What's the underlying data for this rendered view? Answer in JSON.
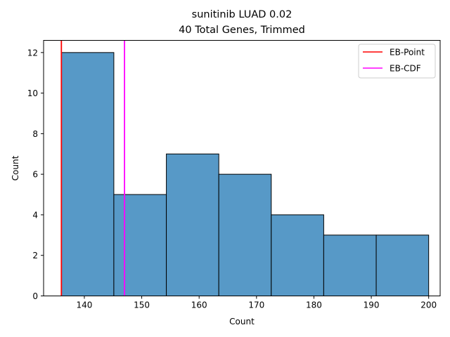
{
  "chart_data": {
    "type": "bar",
    "title": "sunitinib LUAD 0.02",
    "subtitle": "40 Total Genes, Trimmed",
    "xlabel": "Count",
    "ylabel": "Count",
    "xlim": [
      132.9,
      202.0
    ],
    "ylim": [
      0,
      12.6
    ],
    "xticks": [
      140,
      150,
      160,
      170,
      180,
      190,
      200
    ],
    "yticks": [
      0,
      2,
      4,
      6,
      8,
      10,
      12
    ],
    "bins": [
      {
        "start": 136.0,
        "end": 145.14,
        "count": 12
      },
      {
        "start": 145.14,
        "end": 154.29,
        "count": 5
      },
      {
        "start": 154.29,
        "end": 163.43,
        "count": 7
      },
      {
        "start": 163.43,
        "end": 172.57,
        "count": 6
      },
      {
        "start": 172.57,
        "end": 181.71,
        "count": 4
      },
      {
        "start": 181.71,
        "end": 190.86,
        "count": 3
      },
      {
        "start": 190.86,
        "end": 200.0,
        "count": 3
      }
    ],
    "bar_color": "#5799c7",
    "vlines": [
      {
        "name": "EB-Point",
        "x": 136.0,
        "color": "#ff0000"
      },
      {
        "name": "EB-CDF",
        "x": 147.0,
        "color": "#ff00ff"
      }
    ],
    "legend_placement": "top-right",
    "grid": false
  }
}
